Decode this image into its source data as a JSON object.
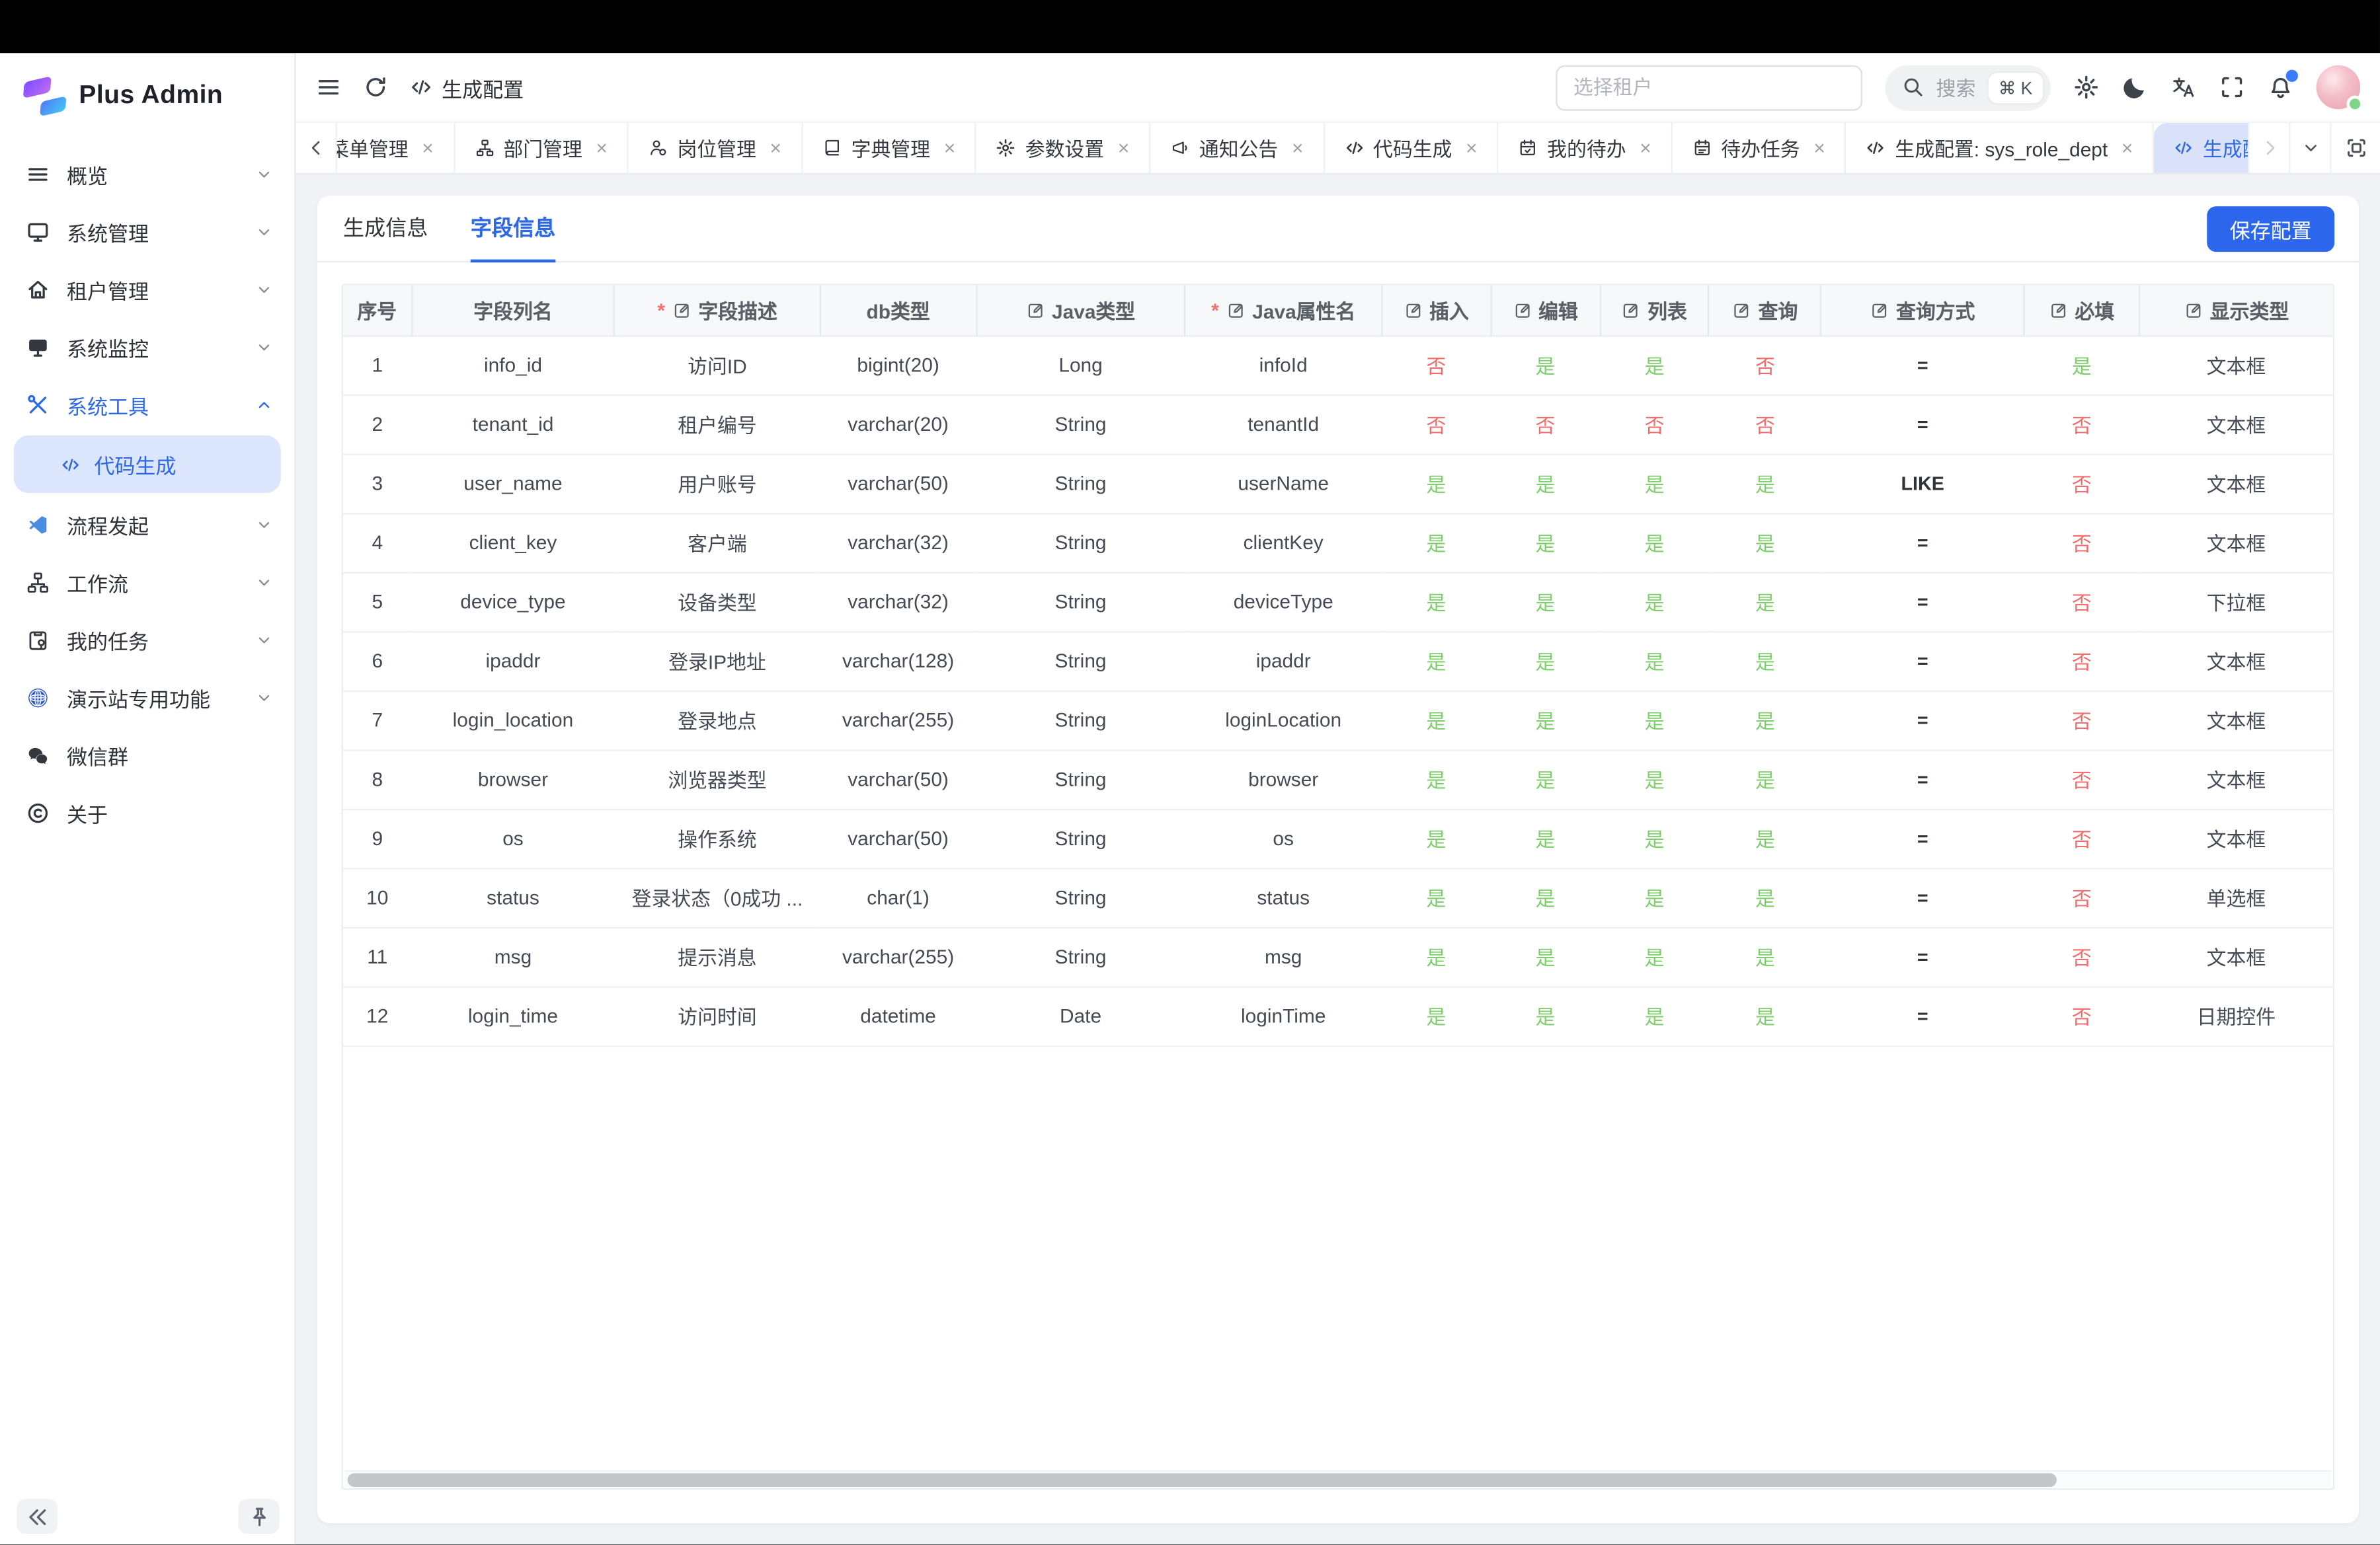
{
  "app": {
    "title": "Plus Admin"
  },
  "sidebar": {
    "items": [
      {
        "name": "overview",
        "label": "概览",
        "icon": "overview-icon",
        "chevron": "down"
      },
      {
        "name": "system-management",
        "label": "系统管理",
        "icon": "monitor-icon",
        "chevron": "down"
      },
      {
        "name": "tenant-management",
        "label": "租户管理",
        "icon": "home-icon",
        "chevron": "down"
      },
      {
        "name": "system-monitor",
        "label": "系统监控",
        "icon": "monitor-filled-icon",
        "chevron": "down"
      },
      {
        "name": "system-tools",
        "label": "系统工具",
        "icon": "tools-icon",
        "chevron": "up",
        "active": true,
        "children": [
          {
            "name": "code-generation",
            "label": "代码生成",
            "icon": "code-icon",
            "active": true
          }
        ]
      },
      {
        "name": "flow-start",
        "label": "流程发起",
        "icon": "flow-icon",
        "chevron": "down"
      },
      {
        "name": "workflow",
        "label": "工作流",
        "icon": "workflow-icon",
        "chevron": "down"
      },
      {
        "name": "my-tasks",
        "label": "我的任务",
        "icon": "clipboard-icon",
        "chevron": "down"
      },
      {
        "name": "demo-features",
        "label": "演示站专用功能",
        "icon": "globe-icon",
        "chevron": "down"
      },
      {
        "name": "wechat-group",
        "label": "微信群",
        "icon": "wechat-icon"
      },
      {
        "name": "about",
        "label": "关于",
        "icon": "about-icon"
      }
    ]
  },
  "header": {
    "breadcrumb": "生成配置",
    "tenant_placeholder": "选择租户",
    "search_label": "搜索",
    "search_shortcut": "⌘ K"
  },
  "tabbar": {
    "tabs": [
      {
        "name": "menu-management",
        "label": "菜单管理",
        "icon": null,
        "closable": true,
        "clipped": "left"
      },
      {
        "name": "dept-management",
        "label": "部门管理",
        "icon": "dept-icon",
        "closable": true
      },
      {
        "name": "post-management",
        "label": "岗位管理",
        "icon": "post-icon",
        "closable": true
      },
      {
        "name": "dict-management",
        "label": "字典管理",
        "icon": "dict-icon",
        "closable": true
      },
      {
        "name": "param-settings",
        "label": "参数设置",
        "icon": "gear-icon",
        "closable": true
      },
      {
        "name": "notice",
        "label": "通知公告",
        "icon": "notice-icon",
        "closable": true
      },
      {
        "name": "code-generation",
        "label": "代码生成",
        "icon": "code-icon",
        "closable": true
      },
      {
        "name": "my-todo",
        "label": "我的待办",
        "icon": "todo-icon",
        "closable": true
      },
      {
        "name": "todo-tasks",
        "label": "待办任务",
        "icon": "task-icon",
        "closable": true
      },
      {
        "name": "gen-config-sys-role-dept",
        "label": "生成配置: sys_role_dept",
        "icon": "code-icon",
        "closable": true
      },
      {
        "name": "gen-config-sys-lo",
        "label": "生成配置: sys_lo",
        "icon": "code-icon",
        "active": true
      }
    ]
  },
  "page": {
    "tabs": [
      {
        "name": "gen-info",
        "label": "生成信息"
      },
      {
        "name": "field-info",
        "label": "字段信息",
        "active": true
      }
    ],
    "save_button": "保存配置"
  },
  "table": {
    "columns": [
      {
        "name": "index",
        "label": "序号"
      },
      {
        "name": "column-name",
        "label": "字段列名"
      },
      {
        "name": "column-desc",
        "label": "字段描述",
        "edit": true,
        "required": true
      },
      {
        "name": "db-type",
        "label": "db类型"
      },
      {
        "name": "java-type",
        "label": "Java类型",
        "edit": true
      },
      {
        "name": "java-prop",
        "label": "Java属性名",
        "edit": true,
        "required": true
      },
      {
        "name": "insert",
        "label": "插入",
        "edit": true
      },
      {
        "name": "edit",
        "label": "编辑",
        "edit": true
      },
      {
        "name": "list",
        "label": "列表",
        "edit": true
      },
      {
        "name": "query",
        "label": "查询",
        "edit": true
      },
      {
        "name": "query-type",
        "label": "查询方式",
        "edit": true
      },
      {
        "name": "required",
        "label": "必填",
        "edit": true
      },
      {
        "name": "display-type",
        "label": "显示类型",
        "edit": true
      }
    ],
    "rows": [
      [
        "1",
        "info_id",
        "访问ID",
        "bigint(20)",
        "Long",
        "infoId",
        "否",
        "是",
        "是",
        "否",
        "=",
        "是",
        "文本框"
      ],
      [
        "2",
        "tenant_id",
        "租户编号",
        "varchar(20)",
        "String",
        "tenantId",
        "否",
        "否",
        "否",
        "否",
        "=",
        "否",
        "文本框"
      ],
      [
        "3",
        "user_name",
        "用户账号",
        "varchar(50)",
        "String",
        "userName",
        "是",
        "是",
        "是",
        "是",
        "LIKE",
        "否",
        "文本框"
      ],
      [
        "4",
        "client_key",
        "客户端",
        "varchar(32)",
        "String",
        "clientKey",
        "是",
        "是",
        "是",
        "是",
        "=",
        "否",
        "文本框"
      ],
      [
        "5",
        "device_type",
        "设备类型",
        "varchar(32)",
        "String",
        "deviceType",
        "是",
        "是",
        "是",
        "是",
        "=",
        "否",
        "下拉框"
      ],
      [
        "6",
        "ipaddr",
        "登录IP地址",
        "varchar(128)",
        "String",
        "ipaddr",
        "是",
        "是",
        "是",
        "是",
        "=",
        "否",
        "文本框"
      ],
      [
        "7",
        "login_location",
        "登录地点",
        "varchar(255)",
        "String",
        "loginLocation",
        "是",
        "是",
        "是",
        "是",
        "=",
        "否",
        "文本框"
      ],
      [
        "8",
        "browser",
        "浏览器类型",
        "varchar(50)",
        "String",
        "browser",
        "是",
        "是",
        "是",
        "是",
        "=",
        "否",
        "文本框"
      ],
      [
        "9",
        "os",
        "操作系统",
        "varchar(50)",
        "String",
        "os",
        "是",
        "是",
        "是",
        "是",
        "=",
        "否",
        "文本框"
      ],
      [
        "10",
        "status",
        "登录状态（0成功 ...",
        "char(1)",
        "String",
        "status",
        "是",
        "是",
        "是",
        "是",
        "=",
        "否",
        "单选框"
      ],
      [
        "11",
        "msg",
        "提示消息",
        "varchar(255)",
        "String",
        "msg",
        "是",
        "是",
        "是",
        "是",
        "=",
        "否",
        "文本框"
      ],
      [
        "12",
        "login_time",
        "访问时间",
        "datetime",
        "Date",
        "loginTime",
        "是",
        "是",
        "是",
        "是",
        "=",
        "否",
        "日期控件"
      ]
    ]
  },
  "colors": {
    "primary": "#2e68e5",
    "active_tab_bg": "#d9e2f8",
    "yes_green": "#7ccf6a",
    "no_red": "#f56c6c",
    "save_button_bg": "#2b66ec"
  }
}
